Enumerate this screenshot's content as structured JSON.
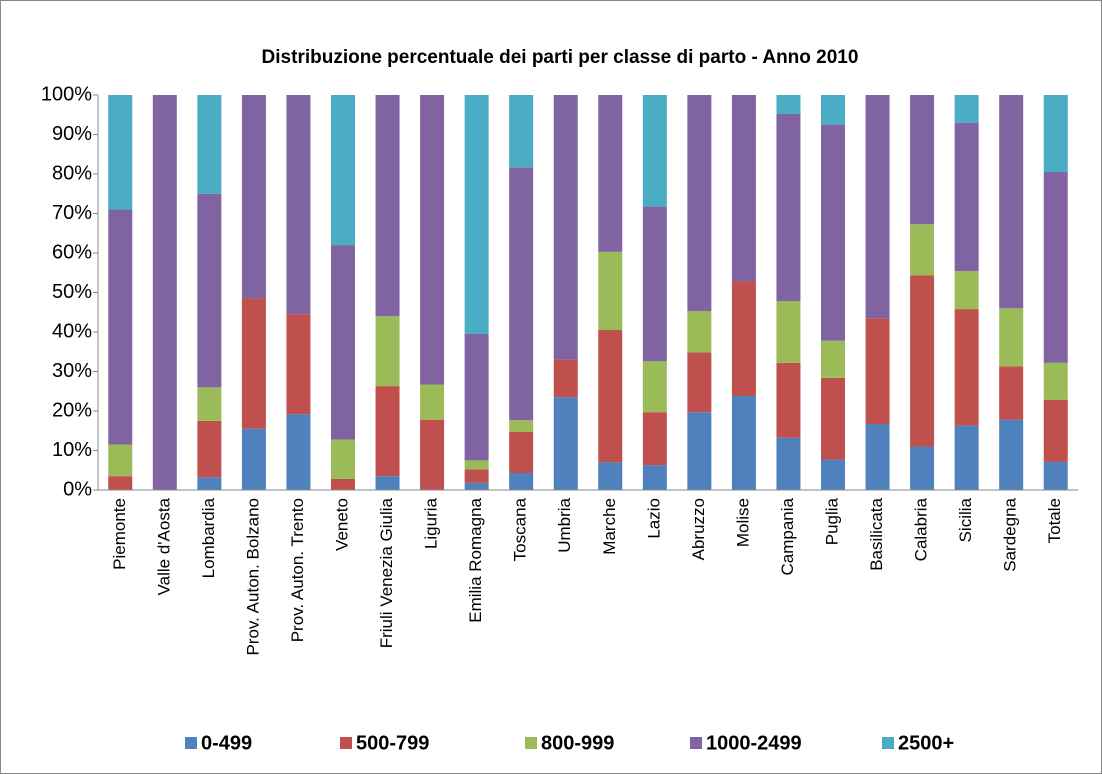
{
  "chart_data": {
    "type": "stacked_bar",
    "title": "Distribuzione percentuale dei parti per classe di parto - Anno 2010",
    "categories": [
      "Piemonte",
      "Valle d'Aosta",
      "Lombardia",
      "Prov. Auton. Bolzano",
      "Prov. Auton. Trento",
      "Veneto",
      "Friuli Venezia Giulia",
      "Liguria",
      "Emilia Romagna",
      "Toscana",
      "Umbria",
      "Marche",
      "Lazio",
      "Abruzzo",
      "Molise",
      "Campania",
      "Puglia",
      "Basilicata",
      "Calabria",
      "Sicilia",
      "Sardegna",
      "Totale"
    ],
    "series": [
      {
        "name": "0-499",
        "color": "#4f81bd",
        "values": [
          0,
          0,
          3.2,
          15.5,
          19.2,
          0,
          3.5,
          0,
          1.8,
          4.3,
          23.5,
          7,
          6.3,
          19.7,
          23.8,
          13.2,
          7.7,
          16.7,
          11,
          16.3,
          17.8,
          7.1
        ]
      },
      {
        "name": "500-799",
        "color": "#c0504d",
        "values": [
          3.5,
          0,
          14.3,
          33,
          25.3,
          2.8,
          22.8,
          17.8,
          3.4,
          10.4,
          9.5,
          33.5,
          13.4,
          15.1,
          29,
          19,
          20.7,
          26.8,
          43.3,
          29.5,
          13.5,
          15.7
        ]
      },
      {
        "name": "800-999",
        "color": "#9bbb59",
        "values": [
          8,
          0,
          8.5,
          0,
          0,
          10,
          17.7,
          8.9,
          2.3,
          3,
          0,
          19.8,
          12.9,
          10.5,
          0,
          15.6,
          9.4,
          0,
          13,
          9.6,
          14.7,
          9.4
        ]
      },
      {
        "name": "1000-2499",
        "color": "#8064a2",
        "values": [
          59.5,
          100,
          49,
          51.5,
          55.5,
          49.2,
          56,
          73.3,
          32,
          64,
          67,
          39.7,
          39.2,
          54.7,
          47.2,
          47.4,
          54.7,
          56.5,
          32.7,
          37.6,
          54,
          48.3
        ]
      },
      {
        "name": "2500+",
        "color": "#4bacc6",
        "values": [
          29,
          0,
          25,
          0,
          0,
          38,
          0,
          0,
          60.5,
          18.3,
          0,
          0,
          28.2,
          0,
          0,
          4.8,
          7.5,
          0,
          0,
          7,
          0,
          19.5
        ]
      }
    ],
    "ylim": [
      0,
      100
    ],
    "yticks": [
      {
        "value": 0,
        "label": "0%"
      },
      {
        "value": 10,
        "label": "10%"
      },
      {
        "value": 20,
        "label": "20%"
      },
      {
        "value": 30,
        "label": "30%"
      },
      {
        "value": 40,
        "label": "40%"
      },
      {
        "value": 50,
        "label": "50%"
      },
      {
        "value": 60,
        "label": "60%"
      },
      {
        "value": 70,
        "label": "70%"
      },
      {
        "value": 80,
        "label": "80%"
      },
      {
        "value": 90,
        "label": "90%"
      },
      {
        "value": 100,
        "label": "100%"
      }
    ],
    "grid": false,
    "legend": "bottom"
  }
}
